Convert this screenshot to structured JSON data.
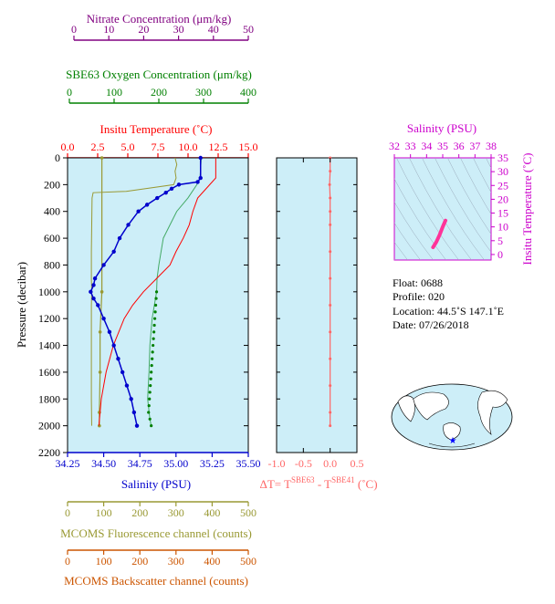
{
  "colors": {
    "nitrate": "#800080",
    "oxygen": "#008000",
    "temperature": "#ff0000",
    "salinity": "#0000cc",
    "fluorescence": "#999933",
    "backscatter": "#cc5500",
    "delta": "#ff6666",
    "ts_axis": "#cc00cc",
    "ts_line": "#ff3399",
    "panel_bg": "#cdeef8"
  },
  "axes": {
    "nitrate": {
      "label": "Nitrate Concentration (μm/kg)",
      "range": [
        0,
        50
      ],
      "ticks": [
        "0",
        "10",
        "20",
        "30",
        "40",
        "50"
      ]
    },
    "oxygen": {
      "label": "SBE63 Oxygen Concentration (μm/kg)",
      "range": [
        0,
        400
      ],
      "ticks": [
        "0",
        "100",
        "200",
        "300",
        "400"
      ]
    },
    "temperature": {
      "label": "Insitu Temperature (˚C)",
      "range": [
        0,
        15
      ],
      "ticks": [
        "0.0",
        "2.5",
        "5.0",
        "7.5",
        "10.0",
        "12.5",
        "15.0"
      ]
    },
    "salinity": {
      "label": "Salinity (PSU)",
      "range": [
        34.25,
        35.5
      ],
      "ticks": [
        "34.25",
        "34.50",
        "34.75",
        "35.00",
        "35.25",
        "35.50"
      ]
    },
    "pressure": {
      "label": "Pressure (decibar)",
      "range": [
        0,
        2200
      ],
      "ticks": [
        "0",
        "200",
        "400",
        "600",
        "800",
        "1000",
        "1200",
        "1400",
        "1600",
        "1800",
        "2000",
        "2200"
      ]
    },
    "fluorescence": {
      "label": "MCOMS Fluorescence channel (counts)",
      "range": [
        0,
        500
      ],
      "ticks": [
        "0",
        "100",
        "200",
        "300",
        "400",
        "500"
      ]
    },
    "backscatter": {
      "label": "MCOMS Backscatter channel (counts)",
      "range": [
        0,
        500
      ],
      "ticks": [
        "0",
        "100",
        "200",
        "300",
        "400",
        "500"
      ]
    },
    "delta_t": {
      "label_prefix": "ΔT= T",
      "label_sup1": "SBE63",
      "label_mid": " - T",
      "label_sup2": "SBE41",
      "label_suffix": " (˚C)",
      "range": [
        -1,
        0.5
      ],
      "ticks": [
        "-1.0",
        "-0.5",
        "0.0",
        "0.5"
      ]
    },
    "ts_salinity": {
      "label": "Salinity (PSU)",
      "range": [
        32,
        38
      ],
      "ticks": [
        "32",
        "33",
        "34",
        "35",
        "36",
        "37",
        "38"
      ]
    },
    "ts_temperature": {
      "label": "Insitu Temperature (˚C)",
      "range": [
        -2,
        35
      ],
      "ticks": [
        "0",
        "5",
        "10",
        "15",
        "20",
        "25",
        "30",
        "35"
      ]
    }
  },
  "info": {
    "float": "Float:  0688",
    "profile": "Profile:  020",
    "location": "Location:  44.5˚S  147.1˚E",
    "date": "Date:  07/26/2018"
  },
  "chart_data": [
    {
      "type": "line",
      "name": "Insitu Temperature",
      "pressure": [
        0,
        150,
        200,
        300,
        400,
        500,
        600,
        700,
        800,
        900,
        1000,
        1100,
        1200,
        1400,
        1600,
        1800,
        2000
      ],
      "values": [
        12.3,
        12.3,
        11.8,
        10.8,
        10.4,
        10.1,
        9.6,
        9.0,
        8.5,
        7.4,
        6.3,
        5.4,
        4.7,
        3.8,
        3.2,
        2.8,
        2.6
      ]
    },
    {
      "type": "line",
      "name": "Salinity",
      "pressure": [
        0,
        150,
        180,
        200,
        230,
        260,
        300,
        350,
        400,
        500,
        600,
        700,
        800,
        900,
        950,
        1000,
        1050,
        1100,
        1200,
        1300,
        1400,
        1500,
        1600,
        1700,
        1800,
        1900,
        2000
      ],
      "values": [
        35.17,
        35.17,
        35.15,
        35.02,
        34.97,
        34.93,
        34.87,
        34.8,
        34.74,
        34.67,
        34.61,
        34.57,
        34.5,
        34.44,
        34.43,
        34.41,
        34.43,
        34.46,
        34.5,
        34.54,
        34.57,
        34.6,
        34.63,
        34.66,
        34.69,
        34.71,
        34.73
      ]
    },
    {
      "type": "line",
      "name": "Oxygen",
      "pressure": [
        0,
        150,
        200,
        300,
        400,
        500,
        600,
        700,
        800,
        900,
        1000,
        1100,
        1200,
        1400,
        1600,
        1800,
        1950,
        2000
      ],
      "values": [
        295,
        292,
        285,
        265,
        240,
        225,
        210,
        205,
        200,
        196,
        195,
        190,
        185,
        180,
        178,
        175,
        180,
        183
      ]
    },
    {
      "type": "line",
      "name": "Nitrate",
      "pressure": [
        0,
        50,
        100,
        150,
        200,
        250,
        260,
        300,
        500,
        700,
        900,
        1000,
        1100,
        1200,
        1400,
        1600,
        1800,
        2000
      ],
      "values": [
        29,
        29.5,
        29,
        29.3,
        28.6,
        15,
        5.5,
        5.2,
        5.1,
        5.0,
        5.0,
        5.1,
        5.0,
        5.0,
        5.0,
        5.0,
        5.0,
        5.1
      ]
    },
    {
      "type": "line",
      "name": "Backscatter",
      "pressure": [
        0,
        1000,
        1300,
        1600,
        1900,
        2000
      ],
      "values": [
        95,
        95,
        90,
        90,
        88,
        88
      ]
    },
    {
      "type": "line",
      "name": "Delta T",
      "pressure": [
        0,
        100,
        200,
        300,
        400,
        500,
        700,
        900,
        1100,
        1300,
        1500,
        1700,
        1900,
        2000
      ],
      "values": [
        0.0,
        0.0,
        -0.01,
        0.0,
        0.0,
        0.0,
        0.0,
        0.0,
        0.0,
        0.0,
        0.0,
        0.0,
        0.0,
        0.0
      ]
    },
    {
      "type": "line",
      "name": "TS",
      "salinity": [
        34.4,
        34.6,
        34.8,
        35.0,
        35.17
      ],
      "temperature": [
        2.6,
        4.5,
        7.0,
        10.0,
        12.3
      ]
    }
  ]
}
